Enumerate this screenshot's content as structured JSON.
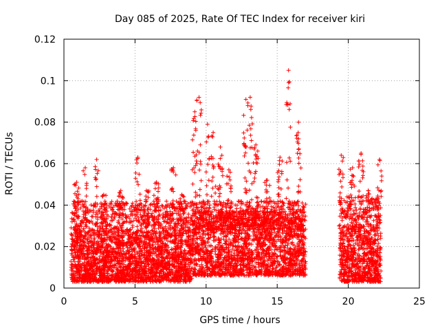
{
  "chart_data": {
    "type": "scatter",
    "title": "Day 085 of 2025, Rate Of TEC Index for receiver kiri",
    "xlabel": "GPS time / hours",
    "ylabel": "ROTI / TECUs",
    "xlim": [
      0,
      25
    ],
    "ylim": [
      0,
      0.12
    ],
    "x_ticks": [
      "0",
      "5",
      "10",
      "15",
      "20",
      "25"
    ],
    "y_ticks": [
      "0",
      "0.02",
      "0.04",
      "0.06",
      "0.08",
      "0.1",
      "0.12"
    ],
    "grid": true,
    "marker": "+",
    "color": "#ff0000",
    "series": [
      {
        "segments": [
          {
            "x_range": [
              0.5,
              17.0
            ],
            "baseline_range": [
              0.003,
              0.028
            ]
          },
          {
            "x_range": [
              19.4,
              22.3
            ],
            "baseline_range": [
              0.003,
              0.03
            ]
          }
        ],
        "spikes": [
          {
            "x": 0.9,
            "y": 0.051
          },
          {
            "x": 1.5,
            "y": 0.058
          },
          {
            "x": 2.3,
            "y": 0.062
          },
          {
            "x": 2.8,
            "y": 0.045
          },
          {
            "x": 4.0,
            "y": 0.047
          },
          {
            "x": 5.2,
            "y": 0.063
          },
          {
            "x": 5.8,
            "y": 0.047
          },
          {
            "x": 6.5,
            "y": 0.051
          },
          {
            "x": 7.7,
            "y": 0.058
          },
          {
            "x": 8.3,
            "y": 0.045
          },
          {
            "x": 9.2,
            "y": 0.085
          },
          {
            "x": 9.5,
            "y": 0.092
          },
          {
            "x": 10.1,
            "y": 0.079
          },
          {
            "x": 10.5,
            "y": 0.075
          },
          {
            "x": 11.0,
            "y": 0.068
          },
          {
            "x": 11.6,
            "y": 0.057
          },
          {
            "x": 12.8,
            "y": 0.091
          },
          {
            "x": 13.1,
            "y": 0.092
          },
          {
            "x": 13.5,
            "y": 0.069
          },
          {
            "x": 14.3,
            "y": 0.052
          },
          {
            "x": 15.2,
            "y": 0.063
          },
          {
            "x": 15.8,
            "y": 0.105
          },
          {
            "x": 16.5,
            "y": 0.08
          },
          {
            "x": 19.5,
            "y": 0.064
          },
          {
            "x": 20.3,
            "y": 0.058
          },
          {
            "x": 20.9,
            "y": 0.065
          },
          {
            "x": 21.4,
            "y": 0.047
          },
          {
            "x": 22.2,
            "y": 0.062
          }
        ],
        "max_y": 0.105
      }
    ]
  }
}
